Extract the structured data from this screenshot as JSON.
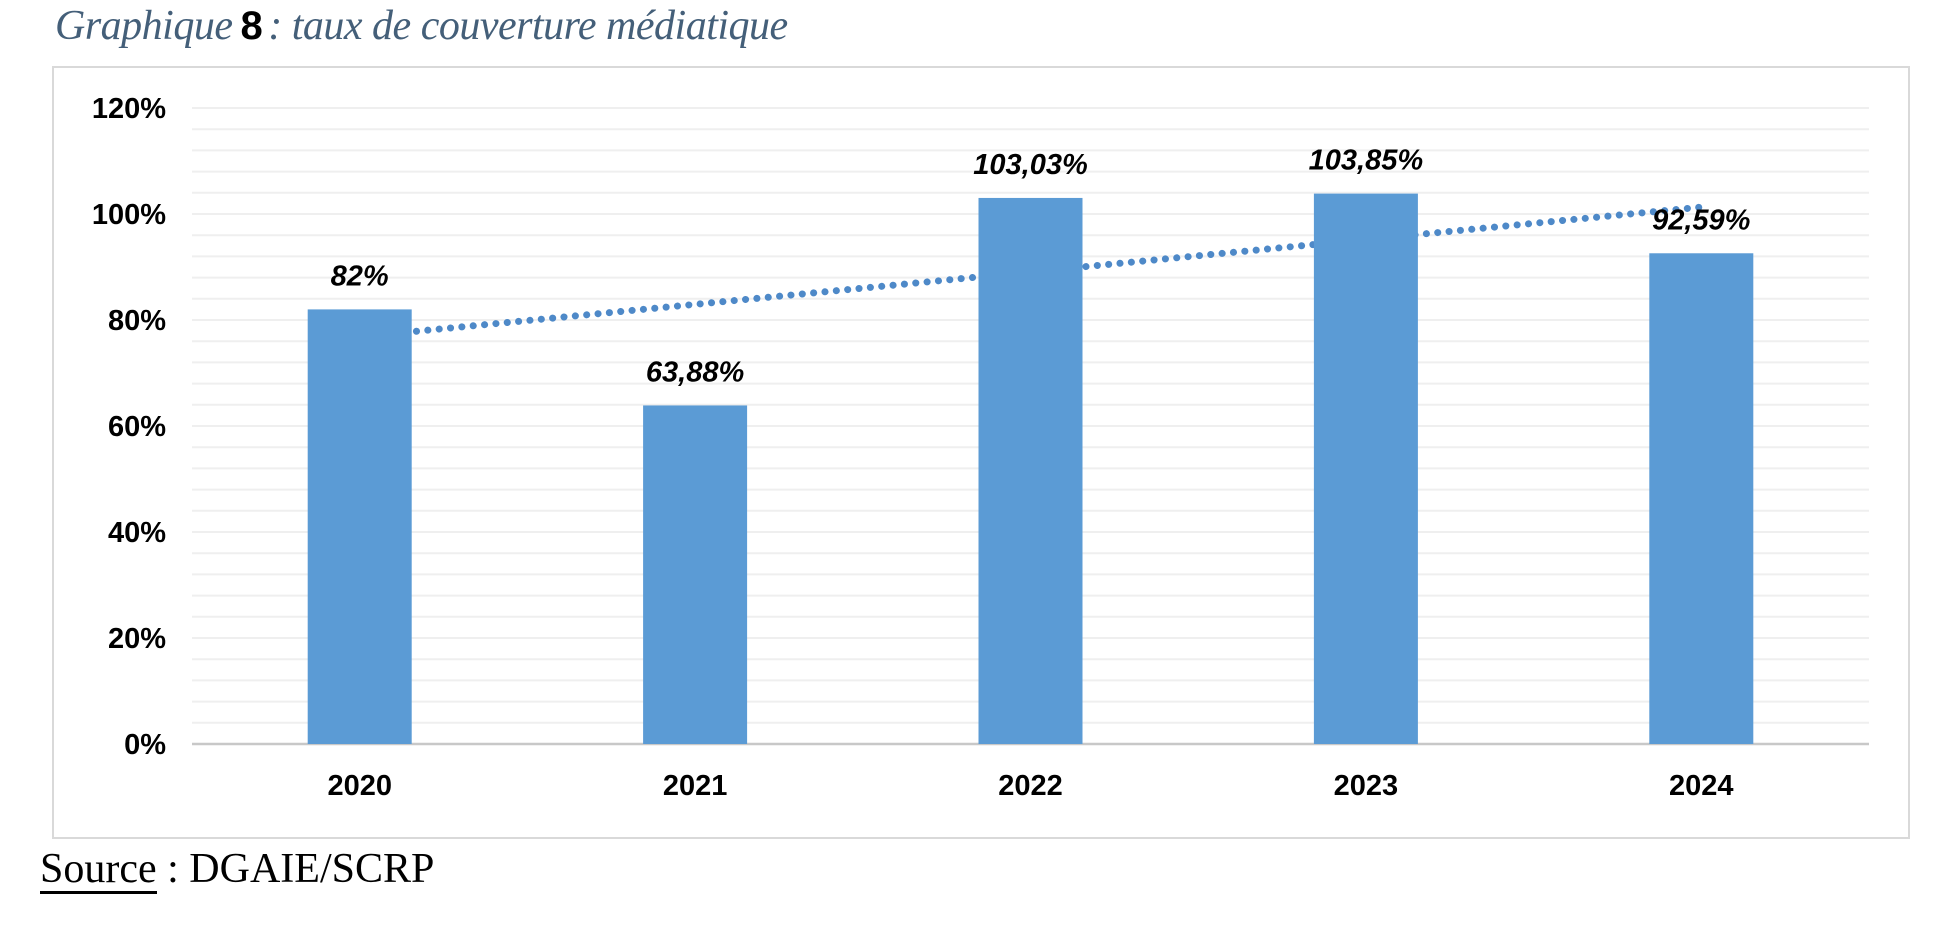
{
  "caption": {
    "prefix": "Graphique",
    "number": "8",
    "rest": ": taux de couverture médiatique"
  },
  "source": {
    "label": "Source",
    "text": ": DGAIE/SCRP"
  },
  "chart_data": {
    "type": "bar",
    "title": "Graphique 8 : taux de couverture médiatique",
    "categories": [
      "2020",
      "2021",
      "2022",
      "2023",
      "2024"
    ],
    "values": [
      82,
      63.88,
      103.03,
      103.85,
      92.59
    ],
    "data_labels": [
      "82%",
      "63,88%",
      "103,03%",
      "103,85%",
      "92,59%"
    ],
    "y_tick_labels": [
      "0%",
      "20%",
      "40%",
      "60%",
      "80%",
      "100%",
      "120%"
    ],
    "xlabel": "",
    "ylabel": "",
    "ylim": [
      0,
      120
    ],
    "y_major": 20,
    "y_minor": 4,
    "grid": true,
    "legend": false,
    "trendline": {
      "type": "linear",
      "style": "dotted",
      "across_categories": [
        1,
        5
      ]
    },
    "colors": {
      "bar": "#5B9BD5",
      "trend": "#4E89C8",
      "gridline": "#EFEFEF",
      "axis_line": "#C8C8C8",
      "box_border": "#D9D9D9",
      "caption_text": "#445F79",
      "label_text": "#000000"
    }
  }
}
